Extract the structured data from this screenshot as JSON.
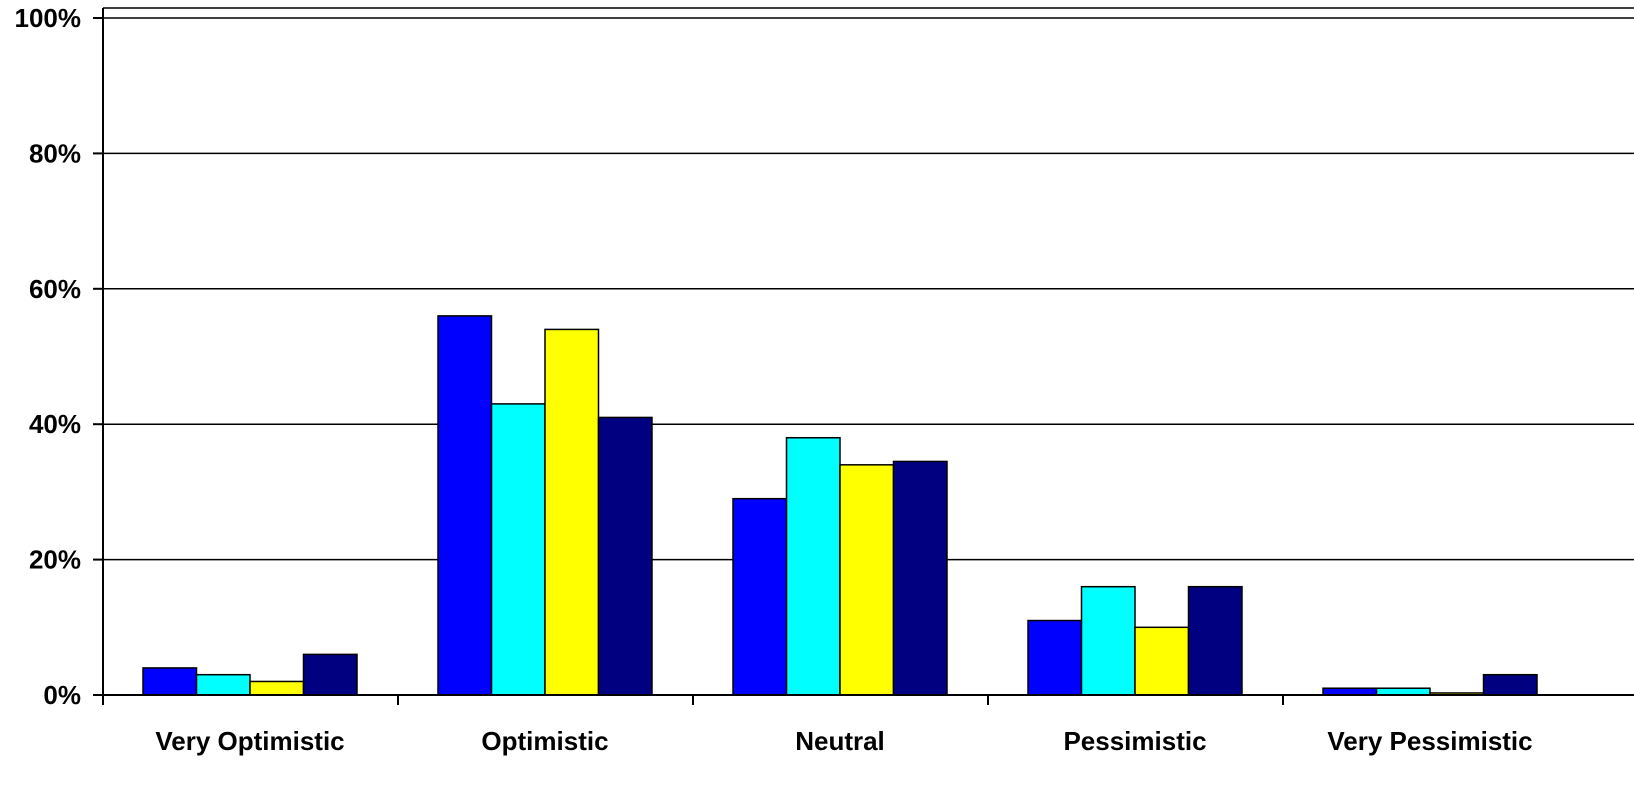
{
  "chart_data": {
    "type": "bar",
    "title": "",
    "xlabel": "",
    "ylabel": "",
    "categories": [
      "Very Optimistic",
      "Optimistic",
      "Neutral",
      "Pessimistic",
      "Very Pessimistic"
    ],
    "series": [
      {
        "color": "#0000FF",
        "values": [
          4,
          56,
          29,
          11,
          1
        ]
      },
      {
        "color": "#00FFFF",
        "values": [
          3,
          43,
          38,
          16,
          1
        ]
      },
      {
        "color": "#FFFF00",
        "values": [
          2,
          54,
          34,
          10,
          0.3
        ]
      },
      {
        "color": "#000080",
        "values": [
          6,
          41,
          34.5,
          16,
          3
        ]
      }
    ],
    "ylim": [
      0,
      100
    ],
    "yticks": [
      0,
      20,
      40,
      60,
      80,
      100
    ],
    "ytick_labels": [
      "0%",
      "20%",
      "40%",
      "60%",
      "80%",
      "100%"
    ],
    "grid": true,
    "legend": "none"
  }
}
